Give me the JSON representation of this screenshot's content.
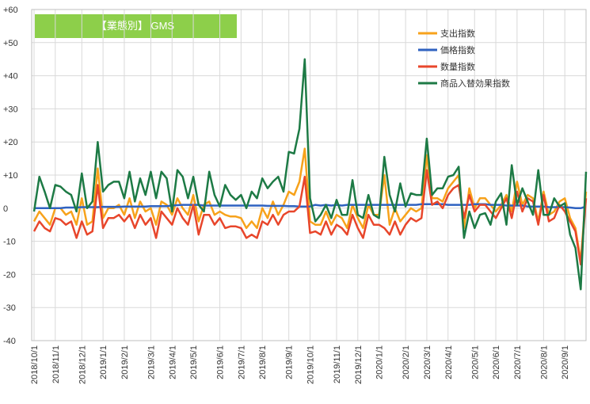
{
  "chart_data": {
    "type": "line",
    "title": "【業態別】 GMS",
    "categories": [
      "2018/10/1",
      null,
      null,
      null,
      "2018/11/1",
      null,
      null,
      null,
      null,
      "2018/12/1",
      null,
      null,
      null,
      "2019/1/1",
      null,
      null,
      null,
      "2019/2/1",
      null,
      null,
      null,
      null,
      "2019/3/1",
      null,
      null,
      null,
      "2019/4/1",
      null,
      null,
      null,
      "2019/5/1",
      null,
      null,
      null,
      null,
      "2019/6/1",
      null,
      null,
      null,
      "2019/7/1",
      null,
      null,
      null,
      "2019/8/1",
      null,
      null,
      null,
      null,
      "2019/9/1",
      null,
      null,
      null,
      "2019/10/1",
      null,
      null,
      null,
      null,
      "2019/11/1",
      null,
      null,
      null,
      "2019/12/1",
      null,
      null,
      null,
      "2020/1/1",
      null,
      null,
      null,
      null,
      "2020/2/1",
      null,
      null,
      null,
      "2020/3/1",
      null,
      null,
      null,
      "2020/4/1",
      null,
      null,
      null,
      null,
      "2020/5/1",
      null,
      null,
      null,
      "2020/6/1",
      null,
      null,
      null,
      "2020/7/1",
      null,
      null,
      null,
      null,
      "2020/8/1",
      null,
      null,
      null,
      "2020/9/1",
      null,
      null,
      null,
      null
    ],
    "series": [
      {
        "name": "支出指数",
        "color": "#f7a21b",
        "values": [
          -4,
          -1,
          -3,
          -5,
          0,
          0,
          -2,
          -1,
          -5,
          3,
          -5,
          -4,
          12,
          -3,
          0,
          0,
          1,
          -2,
          3,
          -3,
          2,
          -1,
          0,
          -5,
          2,
          1,
          -2,
          3,
          0,
          -2,
          4,
          -4,
          1,
          2,
          -2,
          -1,
          -2,
          -2.5,
          -2.5,
          -3,
          -6,
          -4,
          -6,
          0,
          -3,
          2,
          -2,
          1,
          5,
          4,
          8,
          18,
          -4,
          -5,
          -5,
          -1,
          -5,
          -2,
          -3,
          -6,
          1,
          -3,
          -6,
          1,
          -2,
          -2,
          10,
          -5,
          0,
          -4,
          -2,
          0,
          -1,
          0,
          16,
          3,
          3,
          2,
          6,
          8,
          10,
          -6,
          6,
          0,
          3,
          3,
          1,
          -1,
          1,
          4,
          -1,
          8,
          1,
          4,
          3,
          -4,
          5,
          -2,
          -1,
          2,
          3,
          -3,
          -6,
          -16,
          5
        ]
      },
      {
        "name": "価格指数",
        "color": "#2f62c0",
        "values": [
          0,
          0,
          0,
          0,
          0,
          0,
          0.2,
          0.2,
          0.2,
          0.3,
          0.3,
          0.3,
          0.3,
          0.4,
          0.4,
          0.4,
          0.4,
          0.5,
          0.5,
          0.5,
          0.5,
          0.5,
          0.6,
          0.6,
          0.6,
          0.6,
          0.8,
          0.9,
          1,
          1,
          1,
          1,
          0.8,
          0.8,
          0.8,
          0.8,
          0.8,
          0.8,
          0.8,
          0.8,
          0.8,
          0.8,
          0.8,
          0.8,
          0.7,
          0.7,
          0.7,
          0.7,
          0.6,
          0.6,
          0.5,
          0.5,
          0.5,
          1,
          0.8,
          1,
          0.8,
          1,
          0.8,
          1,
          1,
          1,
          1,
          1,
          1,
          1,
          1,
          1,
          1,
          1,
          1,
          1,
          1,
          1.2,
          1.2,
          1.2,
          1.2,
          1.2,
          1,
          1,
          1,
          1,
          1,
          1.2,
          1.2,
          1.2,
          1,
          1,
          1,
          0.8,
          0.8,
          0.8,
          0.8,
          0.5,
          0.5,
          0.5,
          0.5,
          0.3,
          0.3,
          0.3,
          0.3,
          0.2,
          0,
          0,
          0.5
        ]
      },
      {
        "name": "数量指数",
        "color": "#e8462b",
        "values": [
          -7,
          -4,
          -6,
          -7,
          -3,
          -3.5,
          -5,
          -4,
          -9,
          -4,
          -8,
          -7,
          7,
          -6,
          -3,
          -3,
          -2,
          -4,
          -2,
          -6,
          -2,
          -5,
          -3,
          -9,
          -1,
          -3,
          -5,
          0,
          -3,
          -5,
          1,
          -8,
          -2,
          -2,
          -5,
          -3,
          -6,
          -5.5,
          -5.5,
          -6,
          -9,
          -8,
          -9,
          -4,
          -5,
          -2,
          -5,
          -2,
          -1,
          -1,
          0.5,
          9.5,
          -7.5,
          -7,
          -8,
          -4,
          -8,
          -5,
          -6,
          -8,
          -2,
          -6,
          -9,
          -2,
          -5,
          -5,
          -6,
          -8,
          -4,
          -8,
          -5,
          -3,
          -4,
          -3,
          11.5,
          1,
          2,
          0,
          4,
          6,
          7,
          -3,
          4,
          -1,
          1,
          1,
          -1,
          -3,
          0,
          3,
          -3,
          5,
          -1,
          3,
          2,
          -5,
          4,
          -4,
          -3,
          1,
          -1,
          -4,
          -7,
          -17,
          3
        ]
      },
      {
        "name": "商品入替効果指数",
        "color": "#1d7a45",
        "values": [
          -1,
          9.5,
          5,
          0,
          7,
          6.5,
          5,
          4,
          -1,
          10.5,
          0,
          2,
          20,
          5,
          7,
          8,
          8,
          3,
          11,
          2,
          9,
          4,
          11,
          3,
          11,
          9,
          -1,
          11.5,
          9.5,
          3,
          9.5,
          1,
          -1,
          11,
          4,
          0.5,
          7,
          4,
          2.5,
          4,
          0,
          5,
          3,
          9,
          6,
          8,
          9.5,
          5,
          17,
          16.5,
          24,
          45,
          3,
          -4,
          -2,
          1,
          -3,
          2.5,
          -2,
          -2,
          8.5,
          -2,
          -3,
          4,
          -2,
          -3,
          15.5,
          4,
          -1,
          7.5,
          0.5,
          4.5,
          4,
          4,
          21,
          4,
          6,
          6,
          9.5,
          10,
          12.5,
          -9,
          -1,
          -6,
          -2,
          -1.5,
          -5,
          2,
          4.5,
          -5,
          13,
          1,
          6,
          2,
          -2,
          11.5,
          -2,
          -2,
          3,
          0.5,
          1.5,
          -8,
          -12,
          -24.5,
          11
        ]
      }
    ],
    "ylim": [
      -40,
      60
    ],
    "yticks": [
      {
        "value": 60,
        "label": "+60"
      },
      {
        "value": 50,
        "label": "+50"
      },
      {
        "value": 40,
        "label": "+40"
      },
      {
        "value": 30,
        "label": "+30"
      },
      {
        "value": 20,
        "label": "+20"
      },
      {
        "value": 10,
        "label": "+10"
      },
      0,
      -10,
      -20,
      -30,
      -40
    ],
    "grid": true
  }
}
